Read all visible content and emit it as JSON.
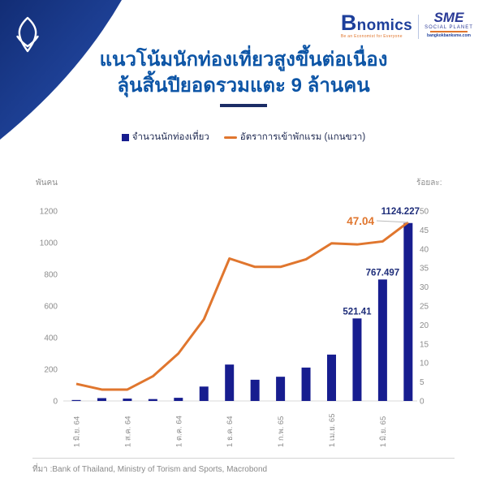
{
  "colors": {
    "accent_blue": "#0d55a6",
    "bar_navy": "#171d8f",
    "line_orange": "#e0762e",
    "label_navy": "#1f2e7a",
    "axis_gray": "#8c8c8c",
    "corner_blue_dark": "#122d75",
    "corner_blue_light": "#2750b0"
  },
  "header": {
    "bnomics": {
      "name": "Bnomics",
      "tagline": "Be an Economist for Everyone"
    },
    "sme": {
      "title": "SME",
      "subtitle": "SOCIAL PLANET",
      "url": "bangkokbanksme.com"
    },
    "title_line1": "แนวโน้มนักท่องเที่ยวสูงขึ้นต่อเนื่อง",
    "title_line2": "ลุ้นสิ้นปียอดรวมแตะ 9 ล้านคน"
  },
  "legend": {
    "bars": "จำนวนนักท่องเที่ยว",
    "line": "อัตราการเข้าพักแรม (แกนขวา)"
  },
  "chart_data": {
    "type": "bar+line",
    "left_axis": {
      "unit": "พันคน",
      "min": 0,
      "max": 1200,
      "step": 200
    },
    "right_axis": {
      "unit": "ร้อยละ:",
      "min": 0,
      "max": 50,
      "step": 5
    },
    "x_tick_labels": [
      {
        "bar_index": 0,
        "label": "1 มิ.ย. 64"
      },
      {
        "bar_index": 2,
        "label": "1 ส.ค. 64"
      },
      {
        "bar_index": 4,
        "label": "1 ต.ค. 64"
      },
      {
        "bar_index": 6,
        "label": "1 ธ.ค. 64"
      },
      {
        "bar_index": 8,
        "label": "1 ก.พ. 65"
      },
      {
        "bar_index": 10,
        "label": "1 เม.ย. 65"
      },
      {
        "bar_index": 12,
        "label": "1 มิ.ย. 65"
      }
    ],
    "series": [
      {
        "name": "จำนวนนักท่องเที่ยว",
        "type": "bar",
        "axis": "left",
        "values": [
          6,
          18,
          15,
          12,
          20,
          91,
          230,
          134,
          153,
          211,
          293,
          521.41,
          767.497,
          1124.227
        ]
      },
      {
        "name": "อัตราการเข้าพักแรม (แกนขวา)",
        "type": "line",
        "axis": "right",
        "values": [
          4.5,
          3,
          3,
          6.5,
          12.5,
          21.5,
          37.5,
          35.3,
          35.3,
          37.3,
          41.5,
          41.2,
          42,
          47.04
        ]
      }
    ],
    "data_labels": [
      {
        "series": "bar",
        "bar_index": 11,
        "text": "521.41"
      },
      {
        "series": "bar",
        "bar_index": 12,
        "text": "767.497"
      },
      {
        "series": "bar",
        "bar_index": 13,
        "text": "1124.227"
      },
      {
        "series": "line",
        "bar_index": 13,
        "text": "47.04"
      }
    ]
  },
  "footer": {
    "source": "ที่มา :Bank of Thailand, Ministry of Torism and Sports, Macrobond"
  }
}
